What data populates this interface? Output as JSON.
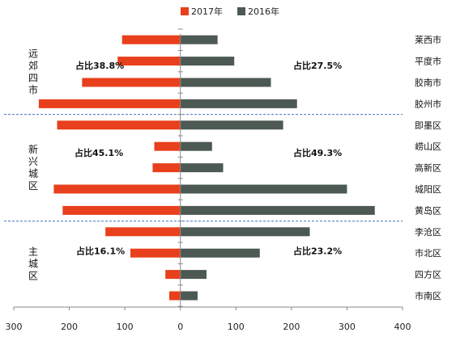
{
  "chart_data": {
    "type": "bar",
    "orientation": "horizontal-butterfly",
    "categories": [
      "莱西市",
      "平度市",
      "胶南市",
      "胶州市",
      "即墨区",
      "崂山区",
      "高新区",
      "城阳区",
      "黄岛区",
      "李沧区",
      "市北区",
      "四方区",
      "市南区"
    ],
    "series": [
      {
        "name": "2017年",
        "color": "#e8401c",
        "side": "left",
        "values": [
          105,
          113,
          177,
          255,
          222,
          47,
          50,
          228,
          212,
          135,
          90,
          27,
          20
        ]
      },
      {
        "name": "2016年",
        "color": "#4d5953",
        "side": "right",
        "values": [
          67,
          97,
          163,
          210,
          185,
          57,
          77,
          300,
          350,
          233,
          143,
          47,
          31
        ]
      }
    ],
    "xlim": [
      -300,
      400
    ],
    "xticks": [
      {
        "value": -300,
        "label": "300"
      },
      {
        "value": -200,
        "label": "200"
      },
      {
        "value": -100,
        "label": "100"
      },
      {
        "value": 0,
        "label": "0"
      },
      {
        "value": 100,
        "label": "100"
      },
      {
        "value": 200,
        "label": "200"
      },
      {
        "value": 300,
        "label": "300"
      },
      {
        "value": 400,
        "label": "400"
      }
    ],
    "legend_position": "top-center",
    "groups": [
      {
        "label": "远郊四市",
        "start": 0,
        "end": 3,
        "left_annotation": "占比38.8%",
        "right_annotation": "占比27.5%"
      },
      {
        "label": "新兴城区",
        "start": 4,
        "end": 8,
        "left_annotation": "占比45.1%",
        "right_annotation": "占比49.3%"
      },
      {
        "label": "主城区",
        "start": 9,
        "end": 12,
        "left_annotation": "占比16.1%",
        "right_annotation": "占比23.2%"
      }
    ],
    "separator_color": "#4472c4"
  }
}
